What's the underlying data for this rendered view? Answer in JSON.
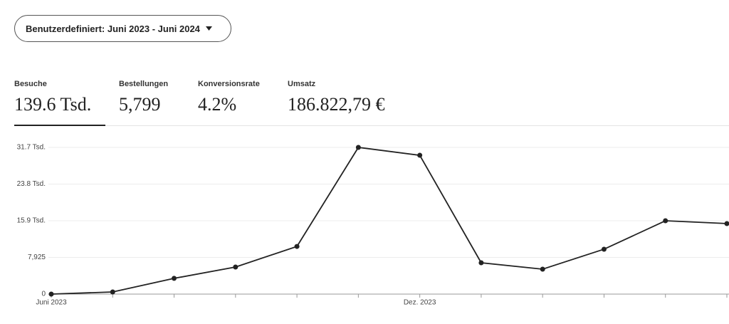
{
  "dropdown": {
    "label": "Benutzerdefiniert: Juni 2023 - Juni 2024"
  },
  "stats": [
    {
      "label": "Besuche",
      "value": "139.6 Tsd."
    },
    {
      "label": "Bestellungen",
      "value": "5,799"
    },
    {
      "label": "Konversionsrate",
      "value": "4.2%"
    },
    {
      "label": "Umsatz",
      "value": "186.822,79 €"
    }
  ],
  "chart_data": {
    "type": "line",
    "categories": [
      "Juni 2023",
      null,
      null,
      null,
      null,
      null,
      "Dez. 2023",
      null,
      null,
      null,
      null,
      null
    ],
    "values": [
      0,
      460,
      3400,
      5850,
      10300,
      31700,
      30000,
      6770,
      5390,
      9700,
      15850,
      15240
    ],
    "color": "#222222",
    "ylim": [
      0,
      31700
    ],
    "yticks": [
      0,
      {
        "value": 7925,
        "label": "7,925"
      },
      {
        "value": 15850,
        "label": "15.9 Tsd."
      },
      {
        "value": 23775,
        "label": "23.8 Tsd."
      },
      {
        "value": 31700,
        "label": "31.7 Tsd."
      }
    ],
    "grid": true
  }
}
